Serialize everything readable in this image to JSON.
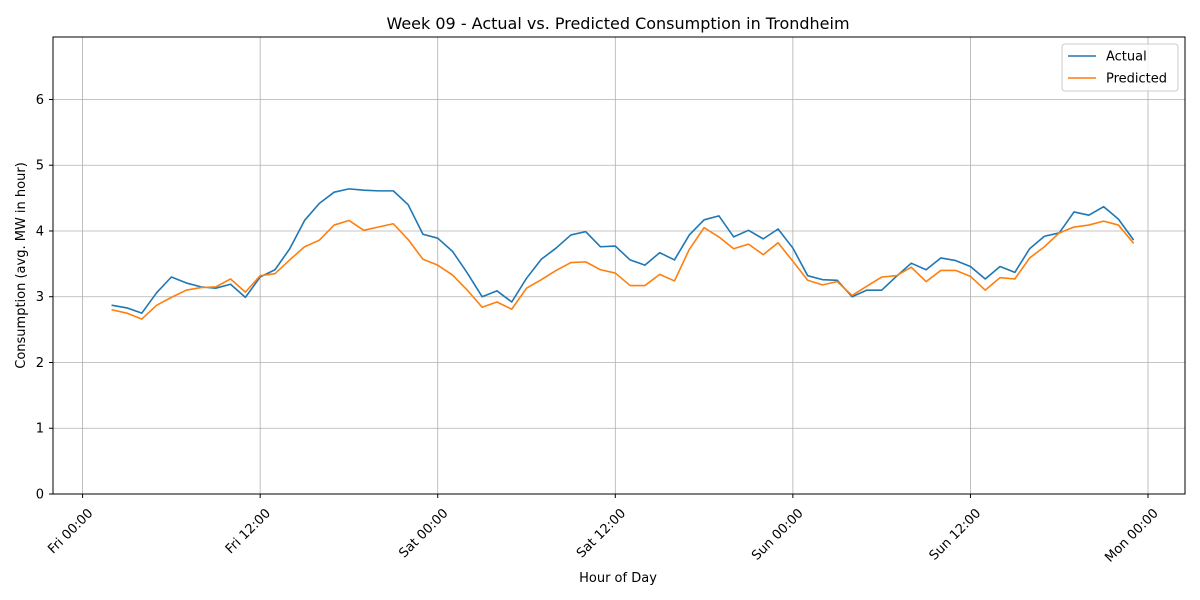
{
  "chart_data": {
    "type": "line",
    "title": "Week 09 - Actual vs. Predicted Consumption in Trondheim",
    "xlabel": "Hour of Day",
    "ylabel": "Consumption (avg. MW in hour)",
    "xlim": [
      -2,
      74.5
    ],
    "ylim": [
      0,
      6.95
    ],
    "grid": true,
    "legend_position": "upper-right",
    "x_ticks": [
      {
        "value": 0,
        "label": "Fri 00:00"
      },
      {
        "value": 12,
        "label": "Fri 12:00"
      },
      {
        "value": 24,
        "label": "Sat 00:00"
      },
      {
        "value": 36,
        "label": "Sat 12:00"
      },
      {
        "value": 48,
        "label": "Sun 00:00"
      },
      {
        "value": 60,
        "label": "Sun 12:00"
      },
      {
        "value": 72,
        "label": "Mon 00:00"
      }
    ],
    "y_ticks": [
      0,
      1,
      2,
      3,
      4,
      5,
      6
    ],
    "x": [
      2,
      3,
      4,
      5,
      6,
      7,
      8,
      9,
      10,
      11,
      12,
      13,
      14,
      15,
      16,
      17,
      18,
      19,
      20,
      21,
      22,
      23,
      24,
      25,
      26,
      27,
      28,
      29,
      30,
      31,
      32,
      33,
      34,
      35,
      36,
      37,
      38,
      39,
      40,
      41,
      42,
      43,
      44,
      45,
      46,
      47,
      48,
      49,
      50,
      51,
      52,
      53,
      54,
      55,
      56,
      57,
      58,
      59,
      60,
      61,
      62,
      63,
      64,
      65,
      66,
      67,
      68,
      69,
      70,
      71
    ],
    "series": [
      {
        "name": "Actual",
        "color": "#1f77b4",
        "values": [
          2.87,
          2.83,
          2.75,
          3.06,
          3.3,
          3.21,
          3.15,
          3.13,
          3.19,
          2.99,
          3.3,
          3.41,
          3.73,
          4.16,
          4.42,
          4.59,
          4.64,
          4.62,
          4.61,
          4.61,
          4.4,
          3.95,
          3.89,
          3.69,
          3.36,
          3.0,
          3.09,
          2.92,
          3.28,
          3.57,
          3.74,
          3.94,
          3.99,
          3.76,
          3.77,
          3.56,
          3.48,
          3.67,
          3.56,
          3.94,
          4.17,
          4.23,
          3.91,
          4.01,
          3.88,
          4.03,
          3.74,
          3.32,
          3.26,
          3.25,
          3.0,
          3.1,
          3.1,
          3.31,
          3.51,
          3.41,
          3.59,
          3.55,
          3.46,
          3.27,
          3.46,
          3.37,
          3.73,
          3.92,
          3.97,
          4.29,
          4.24,
          4.37,
          4.18,
          3.87
        ]
      },
      {
        "name": "Predicted",
        "color": "#ff7f0e",
        "values": [
          2.8,
          2.75,
          2.66,
          2.87,
          2.99,
          3.1,
          3.14,
          3.15,
          3.27,
          3.07,
          3.32,
          3.35,
          3.56,
          3.76,
          3.86,
          4.09,
          4.16,
          4.01,
          4.06,
          4.11,
          3.87,
          3.57,
          3.48,
          3.33,
          3.1,
          2.84,
          2.92,
          2.81,
          3.13,
          3.26,
          3.4,
          3.52,
          3.53,
          3.41,
          3.36,
          3.17,
          3.17,
          3.34,
          3.24,
          3.72,
          4.05,
          3.91,
          3.73,
          3.8,
          3.64,
          3.82,
          3.54,
          3.25,
          3.18,
          3.23,
          3.02,
          3.16,
          3.3,
          3.32,
          3.45,
          3.23,
          3.4,
          3.4,
          3.31,
          3.1,
          3.29,
          3.27,
          3.59,
          3.76,
          3.97,
          4.06,
          4.09,
          4.15,
          4.09,
          3.82
        ]
      }
    ]
  }
}
